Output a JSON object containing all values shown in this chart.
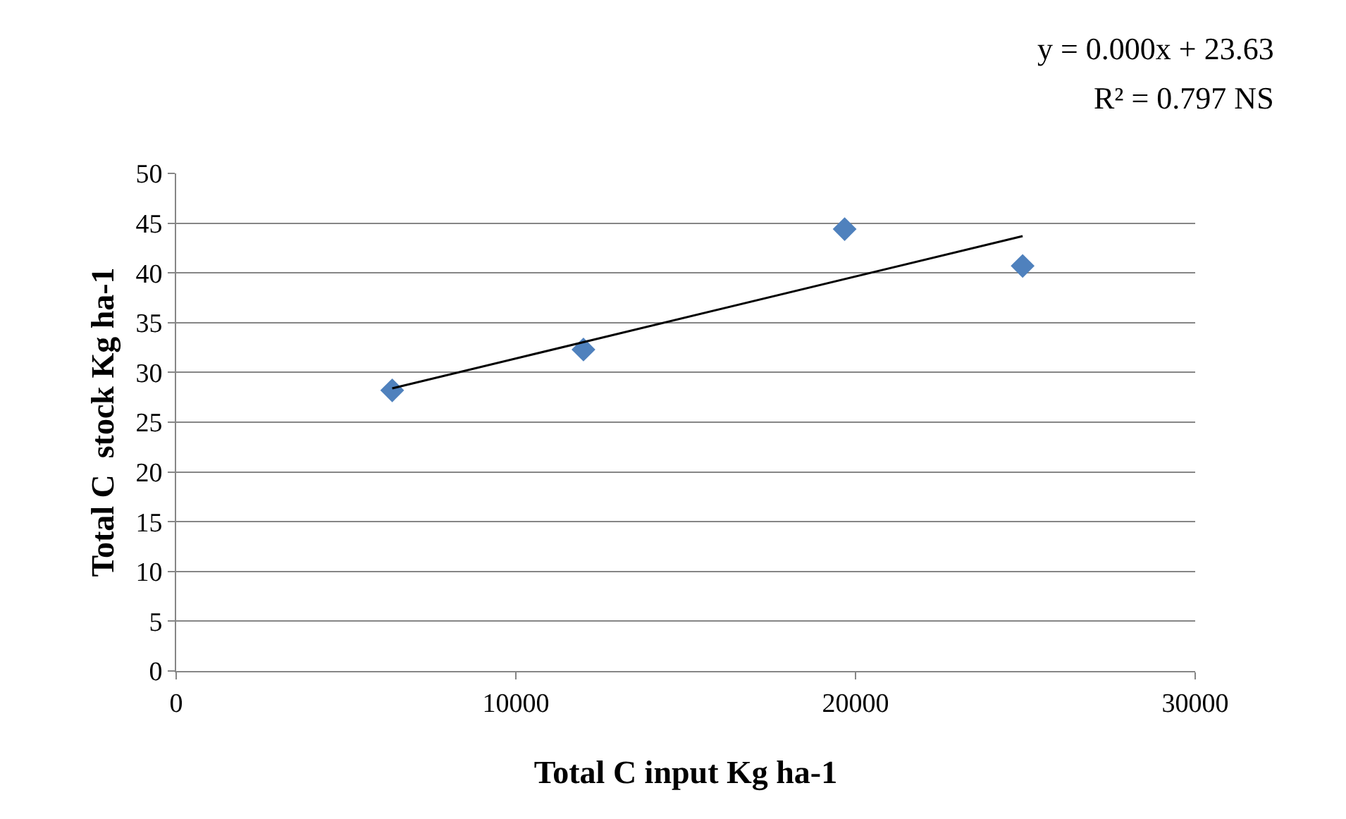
{
  "chart_data": {
    "type": "scatter",
    "xlabel": "Total C input Kg ha-1",
    "ylabel": "Total C  stock Kg ha-1",
    "annotations": [
      "y = 0.000x + 23.63",
      "R² = 0.797 NS"
    ],
    "series": [
      {
        "color": "#4f81bd",
        "x": [
          6360,
          11990,
          19680,
          24920
        ],
        "values": [
          28.2,
          32.3,
          44.4,
          40.7
        ],
        "marker": "diamond"
      },
      {
        "type": "line",
        "color": "#000000",
        "x": [
          6360,
          24920
        ],
        "values": [
          28.4,
          43.7
        ],
        "marker": "none"
      }
    ],
    "xlim": [
      0,
      30000
    ],
    "xticks": [
      0,
      10000,
      20000,
      30000
    ],
    "ylim": [
      0,
      50
    ],
    "yticks": [
      0,
      5,
      10,
      15,
      20,
      25,
      30,
      35,
      40,
      45,
      50
    ],
    "grid": "y",
    "legend": false
  }
}
